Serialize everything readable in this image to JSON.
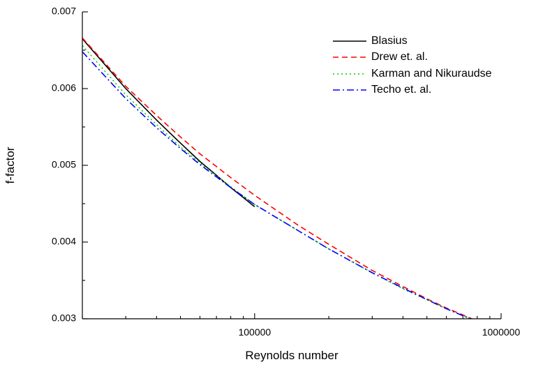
{
  "chart_data": {
    "type": "line",
    "title": "",
    "xlabel": "Reynolds number",
    "ylabel": "f-factor",
    "x_scale": "log",
    "xlim": [
      20000,
      1000000
    ],
    "ylim": [
      0.003,
      0.007
    ],
    "x_tick_labels": [
      "100000",
      "1000000"
    ],
    "y_tick_labels": [
      "0.003",
      "0.004",
      "0.005",
      "0.006",
      "0.007"
    ],
    "grid": false,
    "legend_position": "top-right",
    "series": [
      {
        "name": "Blasius",
        "color": "#000000",
        "dash": "solid",
        "x": [
          20000,
          30000,
          40000,
          50000,
          60000,
          70000,
          80000,
          90000,
          100000
        ],
        "y": [
          0.00665,
          0.006,
          0.00559,
          0.00529,
          0.00505,
          0.00487,
          0.00471,
          0.00458,
          0.00446
        ]
      },
      {
        "name": "Drew et. al.",
        "color": "#ff0000",
        "dash": "dashed",
        "x": [
          20000,
          30000,
          40000,
          50000,
          60000,
          80000,
          100000,
          150000,
          200000,
          300000,
          400000,
          500000,
          600000,
          700000,
          800000
        ],
        "y": [
          0.00666,
          0.00603,
          0.00565,
          0.00537,
          0.00515,
          0.00484,
          0.00461,
          0.00422,
          0.00397,
          0.00363,
          0.00342,
          0.00326,
          0.00314,
          0.00305,
          0.00297
        ]
      },
      {
        "name": "Karman and Nikuraudse",
        "color": "#00cc00",
        "dash": "dotted",
        "x": [
          20000,
          30000,
          40000,
          50000,
          60000,
          80000,
          100000,
          150000,
          200000,
          300000,
          400000,
          500000,
          600000,
          700000,
          800000
        ],
        "y": [
          0.00656,
          0.00592,
          0.00553,
          0.00524,
          0.00503,
          0.00472,
          0.00449,
          0.00415,
          0.00391,
          0.0036,
          0.00339,
          0.00325,
          0.00313,
          0.00304,
          0.00296
        ]
      },
      {
        "name": "Techo et. al.",
        "color": "#0000ff",
        "dash": "dashdot",
        "x": [
          20000,
          30000,
          40000,
          50000,
          60000,
          80000,
          100000,
          150000,
          200000,
          300000,
          400000,
          500000,
          600000,
          700000,
          800000
        ],
        "y": [
          0.00648,
          0.00587,
          0.00549,
          0.00522,
          0.00501,
          0.00471,
          0.00449,
          0.00415,
          0.00391,
          0.0036,
          0.0034,
          0.00325,
          0.00313,
          0.00304,
          0.00297
        ]
      }
    ]
  }
}
